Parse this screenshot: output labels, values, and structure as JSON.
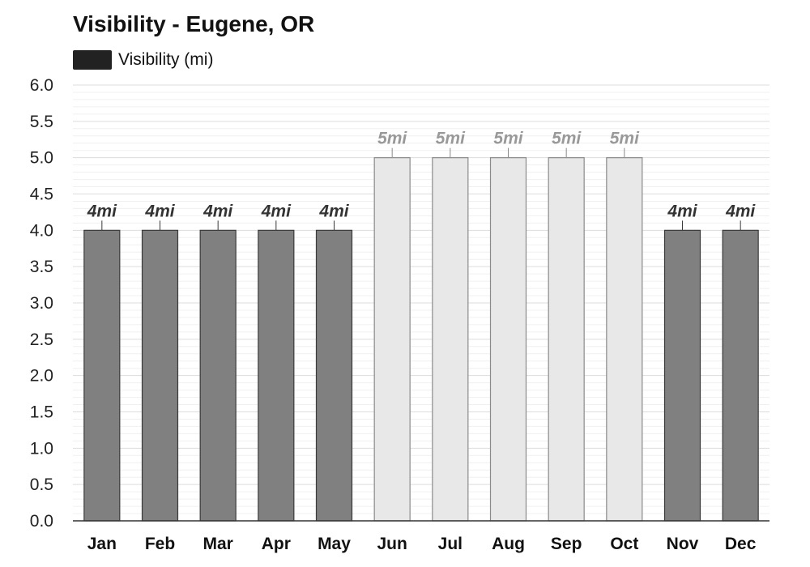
{
  "title": "Visibility - Eugene, OR",
  "legend": {
    "label": "Visibility (mi)",
    "color": "#222222"
  },
  "colors": {
    "dark_bar_fill": "#808080",
    "dark_bar_stroke": "#3a3a3a",
    "dark_label": "#333333",
    "light_bar_fill": "#e8e8e8",
    "light_bar_stroke": "#8a8a8a",
    "light_label": "#999999",
    "grid_major": "#dddddd",
    "grid_minor": "#f0f0f0",
    "axis": "#333333"
  },
  "chart_data": {
    "type": "bar",
    "categories": [
      "Jan",
      "Feb",
      "Mar",
      "Apr",
      "May",
      "Jun",
      "Jul",
      "Aug",
      "Sep",
      "Oct",
      "Nov",
      "Dec"
    ],
    "series": [
      {
        "name": "Visibility (mi)",
        "values": [
          4,
          4,
          4,
          4,
          4,
          5,
          5,
          5,
          5,
          5,
          4,
          4
        ],
        "data_labels": [
          "4mi",
          "4mi",
          "4mi",
          "4mi",
          "4mi",
          "5mi",
          "5mi",
          "5mi",
          "5mi",
          "5mi",
          "4mi",
          "4mi"
        ],
        "shade": [
          "dark",
          "dark",
          "dark",
          "dark",
          "dark",
          "light",
          "light",
          "light",
          "light",
          "light",
          "dark",
          "dark"
        ]
      }
    ],
    "title": "Visibility - Eugene, OR",
    "xlabel": "",
    "ylabel": "",
    "ylim": [
      0,
      6
    ],
    "yticks": [
      "0.0",
      "0.5",
      "1.0",
      "1.5",
      "2.0",
      "2.5",
      "3.0",
      "3.5",
      "4.0",
      "4.5",
      "5.0",
      "5.5",
      "6.0"
    ],
    "grid": true,
    "legend_position": "top-left"
  }
}
